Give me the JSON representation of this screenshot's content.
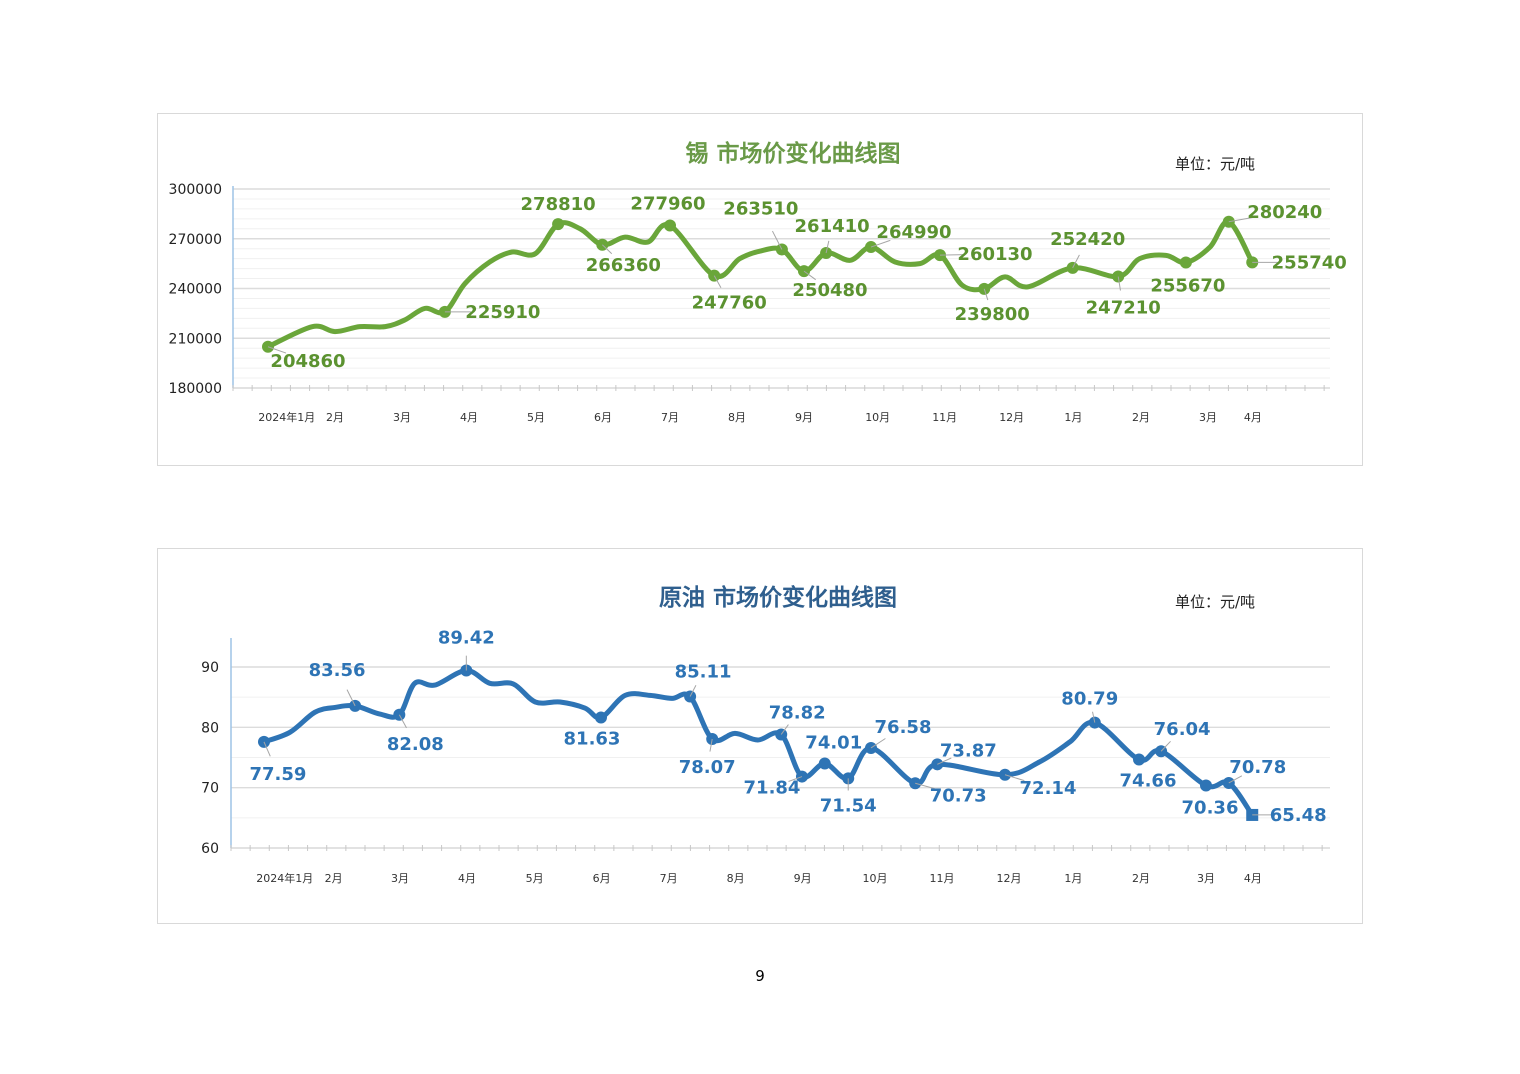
{
  "page_number": "9",
  "colors": {
    "tin_line": "#6aa63a",
    "tin_label": "#5b9230",
    "tin_title": "#6a9a48",
    "oil_line": "#2e74b5",
    "oil_label": "#2e74b5",
    "oil_title": "#2f5f8e"
  },
  "chart_data": [
    {
      "type": "line",
      "title": "锡  市场价变化曲线图",
      "unit": "单位：元/吨",
      "xlabel": "",
      "ylabel": "",
      "ylim": [
        180000,
        300000
      ],
      "yticks": [
        "180000",
        "210000",
        "240000",
        "270000",
        "300000"
      ],
      "ytick_values": [
        180000,
        210000,
        240000,
        270000,
        300000
      ],
      "xlim": [
        -0.52,
        15.85
      ],
      "xtick_labels": [
        {
          "x": 0.28,
          "label": "2024年1月"
        },
        {
          "x": 1,
          "label": "2月"
        },
        {
          "x": 2,
          "label": "3月"
        },
        {
          "x": 3,
          "label": "4月"
        },
        {
          "x": 4,
          "label": "5月"
        },
        {
          "x": 5,
          "label": "6月"
        },
        {
          "x": 6,
          "label": "7月"
        },
        {
          "x": 7,
          "label": "8月"
        },
        {
          "x": 8,
          "label": "9月"
        },
        {
          "x": 9.1,
          "label": "10月"
        },
        {
          "x": 10.1,
          "label": "11月"
        },
        {
          "x": 11.1,
          "label": "12月"
        },
        {
          "x": 12.02,
          "label": "1月"
        },
        {
          "x": 13.03,
          "label": "2月"
        },
        {
          "x": 14.03,
          "label": "3月"
        },
        {
          "x": 14.7,
          "label": "4月"
        }
      ],
      "grid": true,
      "series": [
        {
          "name": "锡",
          "points": [
            {
              "x": 0,
              "y": 204860,
              "label": "204860"
            },
            {
              "x": 0.66,
              "y": 217000
            },
            {
              "x": 1.0,
              "y": 214000
            },
            {
              "x": 1.37,
              "y": 217000
            },
            {
              "x": 1.75,
              "y": 217000
            },
            {
              "x": 2.04,
              "y": 221000
            },
            {
              "x": 2.34,
              "y": 228000
            },
            {
              "x": 2.64,
              "y": 225910,
              "label": "225910"
            },
            {
              "x": 2.94,
              "y": 243000
            },
            {
              "x": 3.31,
              "y": 256000
            },
            {
              "x": 3.64,
              "y": 262000
            },
            {
              "x": 3.99,
              "y": 261000
            },
            {
              "x": 4.33,
              "y": 278810,
              "label": "278810"
            },
            {
              "x": 4.66,
              "y": 276000
            },
            {
              "x": 4.99,
              "y": 266360,
              "label": "266360"
            },
            {
              "x": 5.33,
              "y": 271000
            },
            {
              "x": 5.67,
              "y": 268000
            },
            {
              "x": 6.0,
              "y": 277960,
              "label": "277960"
            },
            {
              "x": 6.66,
              "y": 247760,
              "label": "247760"
            },
            {
              "x": 7.04,
              "y": 258000
            },
            {
              "x": 7.34,
              "y": 262500
            },
            {
              "x": 7.67,
              "y": 263510,
              "label": "263510"
            },
            {
              "x": 8.0,
              "y": 250480,
              "label": "250480"
            },
            {
              "x": 8.33,
              "y": 261410,
              "label": "261410"
            },
            {
              "x": 8.69,
              "y": 257000
            },
            {
              "x": 9.0,
              "y": 264990,
              "label": "264990"
            },
            {
              "x": 9.36,
              "y": 256000
            },
            {
              "x": 9.73,
              "y": 255000
            },
            {
              "x": 10.03,
              "y": 260130,
              "label": "260130"
            },
            {
              "x": 10.36,
              "y": 242000
            },
            {
              "x": 10.69,
              "y": 239800,
              "label": "239800"
            },
            {
              "x": 11.0,
              "y": 247000
            },
            {
              "x": 11.34,
              "y": 241000
            },
            {
              "x": 12.01,
              "y": 252420,
              "label": "252420"
            },
            {
              "x": 12.69,
              "y": 247210,
              "label": "247210"
            },
            {
              "x": 13.01,
              "y": 258000
            },
            {
              "x": 13.4,
              "y": 260000
            },
            {
              "x": 13.7,
              "y": 255670,
              "label": "255670"
            },
            {
              "x": 14.06,
              "y": 265000
            },
            {
              "x": 14.34,
              "y": 280240,
              "label": "280240"
            },
            {
              "x": 14.69,
              "y": 255740,
              "label": "255740"
            }
          ]
        }
      ]
    },
    {
      "type": "line",
      "title": "原油  市场价变化曲线图",
      "unit": "单位：元/吨",
      "xlabel": "",
      "ylabel": "",
      "ylim": [
        60,
        95
      ],
      "yticks": [
        "60",
        "70",
        "80",
        "90"
      ],
      "ytick_values": [
        60,
        70,
        80,
        90
      ],
      "xlim": [
        -0.55,
        15.85
      ],
      "xtick_labels": [
        {
          "x": 0.25,
          "label": "2024年1月"
        },
        {
          "x": 0.98,
          "label": "2月"
        },
        {
          "x": 1.97,
          "label": "3月"
        },
        {
          "x": 2.97,
          "label": "4月"
        },
        {
          "x": 3.98,
          "label": "5月"
        },
        {
          "x": 4.98,
          "label": "6月"
        },
        {
          "x": 5.98,
          "label": "7月"
        },
        {
          "x": 6.98,
          "label": "8月"
        },
        {
          "x": 7.98,
          "label": "9月"
        },
        {
          "x": 9.06,
          "label": "10月"
        },
        {
          "x": 10.06,
          "label": "11月"
        },
        {
          "x": 11.06,
          "label": "12月"
        },
        {
          "x": 12.02,
          "label": "1月"
        },
        {
          "x": 13.03,
          "label": "2月"
        },
        {
          "x": 14.0,
          "label": "3月"
        },
        {
          "x": 14.7,
          "label": "4月"
        }
      ],
      "grid": true,
      "series": [
        {
          "name": "原油",
          "points": [
            {
              "x": -0.06,
              "y": 77.59,
              "label": "77.59"
            },
            {
              "x": 0.33,
              "y": 79.2
            },
            {
              "x": 0.7,
              "y": 82.5
            },
            {
              "x": 1.0,
              "y": 83.3
            },
            {
              "x": 1.3,
              "y": 83.56,
              "label": "83.56"
            },
            {
              "x": 1.67,
              "y": 82.2
            },
            {
              "x": 1.96,
              "y": 82.08,
              "label": "82.08"
            },
            {
              "x": 2.19,
              "y": 87.3
            },
            {
              "x": 2.49,
              "y": 87.0
            },
            {
              "x": 2.96,
              "y": 89.42,
              "label": "89.42"
            },
            {
              "x": 3.31,
              "y": 87.3
            },
            {
              "x": 3.66,
              "y": 87.2
            },
            {
              "x": 3.99,
              "y": 84.2
            },
            {
              "x": 4.36,
              "y": 84.2
            },
            {
              "x": 4.73,
              "y": 83.2
            },
            {
              "x": 4.97,
              "y": 81.63,
              "label": "81.63"
            },
            {
              "x": 5.33,
              "y": 85.3
            },
            {
              "x": 5.7,
              "y": 85.3
            },
            {
              "x": 6.03,
              "y": 84.8
            },
            {
              "x": 6.3,
              "y": 85.11,
              "label": "85.11"
            },
            {
              "x": 6.63,
              "y": 78.07,
              "label": "78.07"
            },
            {
              "x": 6.97,
              "y": 79.0
            },
            {
              "x": 7.31,
              "y": 77.9
            },
            {
              "x": 7.66,
              "y": 78.82,
              "label": "78.82"
            },
            {
              "x": 7.97,
              "y": 71.84,
              "label": "71.84"
            },
            {
              "x": 8.31,
              "y": 74.01,
              "label": "74.01"
            },
            {
              "x": 8.66,
              "y": 71.54,
              "label": "71.54"
            },
            {
              "x": 9.0,
              "y": 76.58,
              "label": "76.58"
            },
            {
              "x": 9.66,
              "y": 70.73,
              "label": "70.73"
            },
            {
              "x": 9.99,
              "y": 73.87,
              "label": "73.87"
            },
            {
              "x": 11.0,
              "y": 72.14,
              "label": "72.14"
            },
            {
              "x": 11.52,
              "y": 74.3
            },
            {
              "x": 11.97,
              "y": 77.6
            },
            {
              "x": 12.34,
              "y": 80.79,
              "label": "80.79"
            },
            {
              "x": 13.0,
              "y": 74.66,
              "label": "74.66"
            },
            {
              "x": 13.33,
              "y": 76.04,
              "label": "76.04"
            },
            {
              "x": 14.0,
              "y": 70.36,
              "label": "70.36"
            },
            {
              "x": 14.34,
              "y": 70.78,
              "label": "70.78"
            },
            {
              "x": 14.69,
              "y": 65.48,
              "label": "65.48",
              "marker": "square"
            }
          ]
        }
      ]
    }
  ]
}
